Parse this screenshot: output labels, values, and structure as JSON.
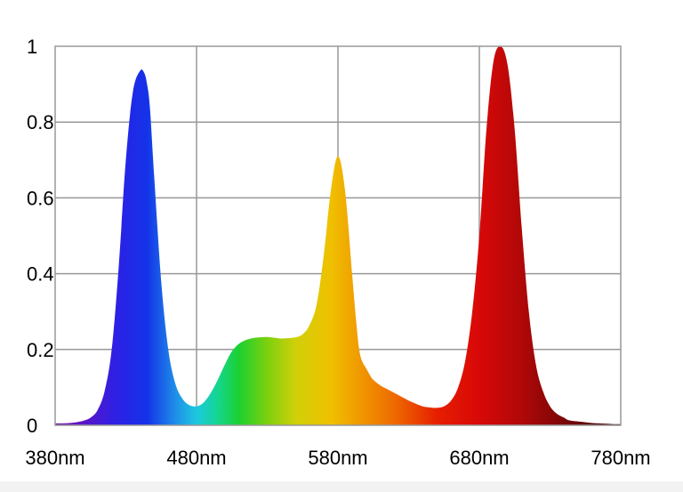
{
  "chart_data": {
    "type": "area",
    "title": "",
    "xlabel": "",
    "ylabel": "",
    "xlim": [
      380,
      780
    ],
    "ylim": [
      0,
      1
    ],
    "grid": true,
    "x_ticks": [
      {
        "value": 380,
        "label": "380nm"
      },
      {
        "value": 480,
        "label": "480nm"
      },
      {
        "value": 580,
        "label": "580nm"
      },
      {
        "value": 680,
        "label": "680nm"
      },
      {
        "value": 780,
        "label": "780nm"
      }
    ],
    "y_ticks": [
      {
        "value": 0,
        "label": "0"
      },
      {
        "value": 0.2,
        "label": "0.2"
      },
      {
        "value": 0.4,
        "label": "0.4"
      },
      {
        "value": 0.6,
        "label": "0.6"
      },
      {
        "value": 0.8,
        "label": "0.8"
      },
      {
        "value": 1,
        "label": "1"
      }
    ],
    "series": [
      {
        "fill": "visible-spectrum-gradient",
        "x": [
          380,
          385,
          390,
          395,
          400,
          405,
          410,
          415,
          420,
          425,
          430,
          435,
          440,
          443,
          445,
          447,
          450,
          455,
          460,
          465,
          470,
          475,
          480,
          485,
          490,
          495,
          500,
          505,
          510,
          515,
          520,
          525,
          530,
          535,
          540,
          545,
          550,
          555,
          560,
          565,
          570,
          575,
          580,
          585,
          590,
          593,
          595,
          597,
          600,
          603,
          605,
          610,
          615,
          620,
          625,
          630,
          635,
          640,
          645,
          650,
          655,
          660,
          665,
          670,
          675,
          680,
          685,
          690,
          695,
          700,
          705,
          710,
          715,
          720,
          725,
          730,
          735,
          740,
          742,
          745,
          750,
          755,
          760,
          765,
          770,
          775,
          780
        ],
        "y": [
          0.005,
          0.005,
          0.006,
          0.008,
          0.012,
          0.02,
          0.04,
          0.09,
          0.2,
          0.42,
          0.7,
          0.88,
          0.935,
          0.93,
          0.9,
          0.84,
          0.66,
          0.38,
          0.2,
          0.11,
          0.07,
          0.053,
          0.05,
          0.06,
          0.085,
          0.12,
          0.16,
          0.195,
          0.215,
          0.225,
          0.23,
          0.232,
          0.233,
          0.231,
          0.229,
          0.23,
          0.232,
          0.24,
          0.265,
          0.32,
          0.45,
          0.62,
          0.71,
          0.62,
          0.4,
          0.27,
          0.2,
          0.17,
          0.15,
          0.13,
          0.12,
          0.105,
          0.095,
          0.085,
          0.075,
          0.065,
          0.057,
          0.05,
          0.047,
          0.046,
          0.05,
          0.065,
          0.1,
          0.17,
          0.3,
          0.5,
          0.78,
          0.96,
          1.0,
          0.95,
          0.78,
          0.52,
          0.3,
          0.16,
          0.09,
          0.05,
          0.03,
          0.02,
          0.015,
          0.012,
          0.01,
          0.008,
          0.006,
          0.005,
          0.004,
          0.003,
          0.003
        ]
      }
    ]
  },
  "colors": {
    "grid": "#999999",
    "axis": "#555555",
    "text": "#000000",
    "spectrum": [
      {
        "nm": 380,
        "color": "#7a16b0"
      },
      {
        "nm": 400,
        "color": "#5a14c8"
      },
      {
        "nm": 425,
        "color": "#2a22e6"
      },
      {
        "nm": 445,
        "color": "#1432e8"
      },
      {
        "nm": 465,
        "color": "#1f8ee8"
      },
      {
        "nm": 480,
        "color": "#1dc8e0"
      },
      {
        "nm": 495,
        "color": "#14d690"
      },
      {
        "nm": 510,
        "color": "#1cd030"
      },
      {
        "nm": 530,
        "color": "#7cd00e"
      },
      {
        "nm": 550,
        "color": "#d0d008"
      },
      {
        "nm": 575,
        "color": "#f0c000"
      },
      {
        "nm": 595,
        "color": "#f09a00"
      },
      {
        "nm": 620,
        "color": "#ee6a00"
      },
      {
        "nm": 650,
        "color": "#e61e00"
      },
      {
        "nm": 680,
        "color": "#d80808"
      },
      {
        "nm": 710,
        "color": "#b00808"
      },
      {
        "nm": 740,
        "color": "#7a0606"
      },
      {
        "nm": 780,
        "color": "#380404"
      }
    ]
  }
}
